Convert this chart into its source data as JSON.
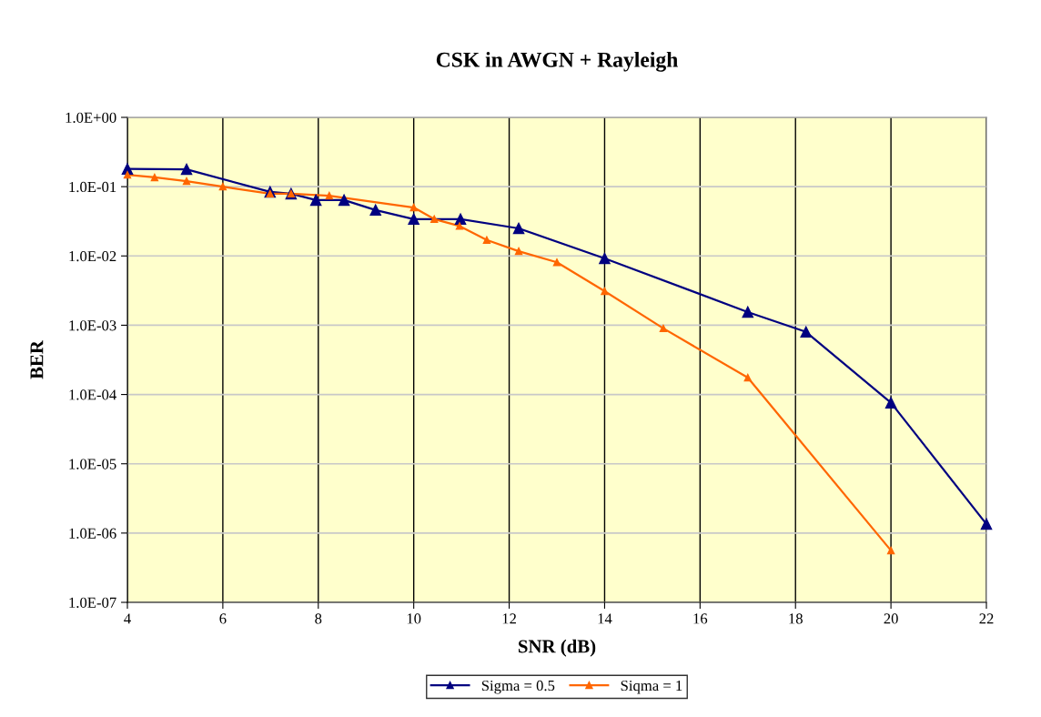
{
  "chart_data": {
    "type": "line",
    "title": "CSK in AWGN + Rayleigh",
    "xlabel": "SNR (dB)",
    "ylabel": "BER",
    "log": "y",
    "grid": true,
    "legend": "bottom",
    "marker": "triangle",
    "line_style": "solid",
    "xlim": [
      4,
      22
    ],
    "xticks": [
      4,
      6,
      8,
      10,
      12,
      14,
      16,
      18,
      20,
      22
    ],
    "ylim": [
      1e-07,
      1
    ],
    "yticks": [
      {
        "value": 1,
        "label": "1.0E+00"
      },
      {
        "value": 0.1,
        "label": "1.0E-01"
      },
      {
        "value": 0.01,
        "label": "1.0E-02"
      },
      {
        "value": 0.001,
        "label": "1.0E-03"
      },
      {
        "value": 0.0001,
        "label": "1.0E-04"
      },
      {
        "value": 1e-05,
        "label": "1.0E-05"
      },
      {
        "value": 1e-06,
        "label": "1.0E-06"
      },
      {
        "value": 1e-07,
        "label": "1.0E-07"
      }
    ],
    "series": [
      {
        "name": "Sigma = 0.5",
        "color": "#000080",
        "x": [
          4,
          5.24,
          6.99,
          7.43,
          7.95,
          8.54,
          9.2,
          10.0,
          10.98,
          12.2,
          14.0,
          17.0,
          18.22,
          20.0,
          22.0
        ],
        "values": [
          0.18,
          0.178,
          0.084,
          0.079,
          0.064,
          0.064,
          0.046,
          0.034,
          0.034,
          0.025,
          0.0092,
          0.00155,
          0.0008,
          7.6e-05,
          1.35e-06
        ]
      },
      {
        "name": "Siqma = 1",
        "color": "#ff6600",
        "x": [
          4,
          4.57,
          5.24,
          6.0,
          6.99,
          7.43,
          8.23,
          10.0,
          10.43,
          10.96,
          11.53,
          12.2,
          13.0,
          14.0,
          15.23,
          17.0,
          20.0
        ],
        "values": [
          0.148,
          0.136,
          0.12,
          0.1,
          0.079,
          0.079,
          0.074,
          0.05,
          0.034,
          0.027,
          0.017,
          0.0117,
          0.0081,
          0.0031,
          0.0009,
          0.000175,
          5.6e-07
        ]
      }
    ]
  }
}
